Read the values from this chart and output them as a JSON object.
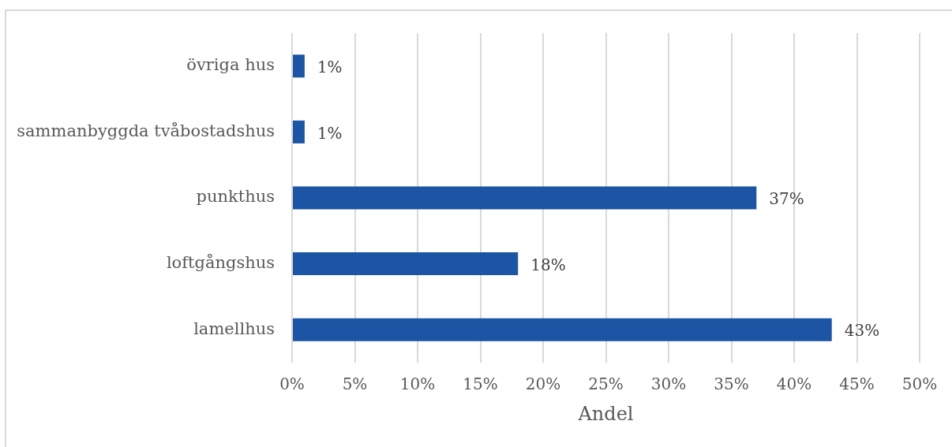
{
  "chart_data": {
    "type": "bar",
    "orientation": "horizontal",
    "categories": [
      "övriga hus",
      "sammanbyggda tvåbostadshus",
      "punkthus",
      "loftgångshus",
      "lamellhus"
    ],
    "values": [
      1,
      1,
      37,
      18,
      43
    ],
    "color": "#1b55a3",
    "value_labels": [
      "1%",
      "1%",
      "37%",
      "18%",
      "43%"
    ],
    "xlabel": "Andel",
    "xlim": [
      0,
      50
    ],
    "xticks": [
      {
        "value": 0,
        "label": "0%"
      },
      {
        "value": 5,
        "label": "5%"
      },
      {
        "value": 10,
        "label": "10%"
      },
      {
        "value": 15,
        "label": "15%"
      },
      {
        "value": 20,
        "label": "20%"
      },
      {
        "value": 25,
        "label": "25%"
      },
      {
        "value": 30,
        "label": "30%"
      },
      {
        "value": 35,
        "label": "35%"
      },
      {
        "value": 40,
        "label": "40%"
      },
      {
        "value": 45,
        "label": "45%"
      },
      {
        "value": 50,
        "label": "50%"
      }
    ],
    "grid": "x"
  }
}
